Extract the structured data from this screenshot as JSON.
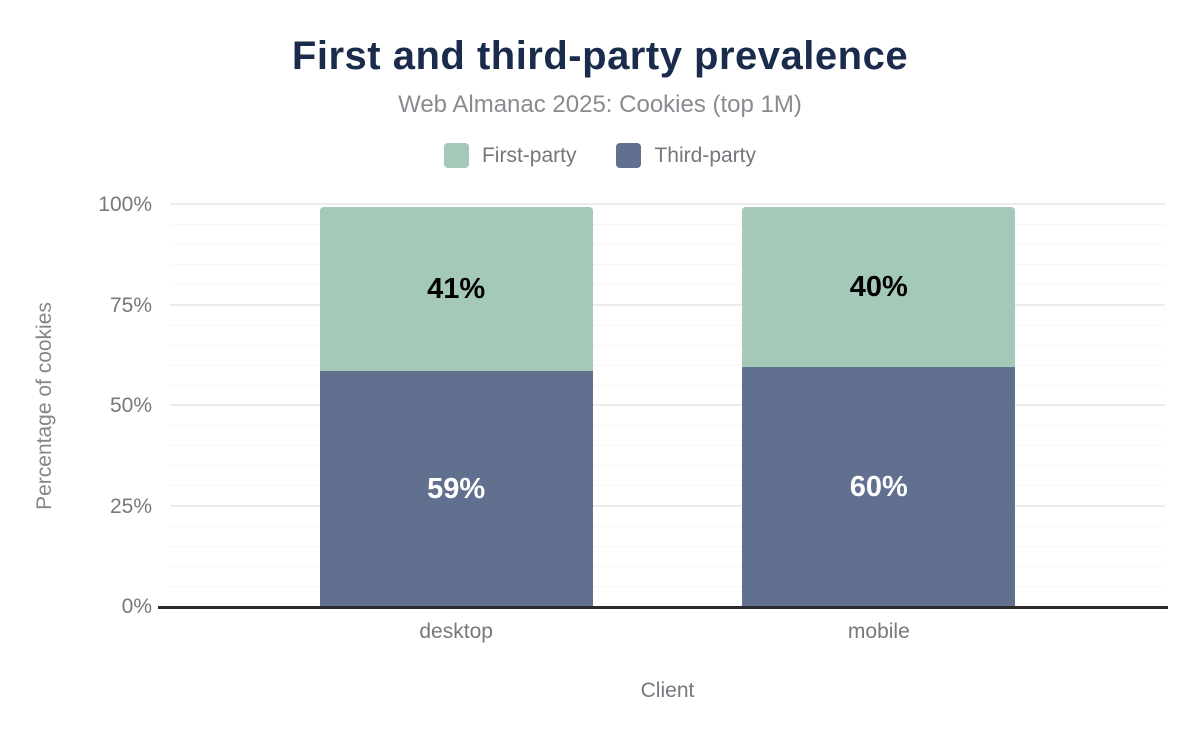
{
  "chart_data": {
    "type": "bar",
    "stacked": true,
    "title": "First and third-party prevalence",
    "subtitle": "Web Almanac 2025: Cookies (top 1M)",
    "xlabel": "Client",
    "ylabel": "Percentage of cookies",
    "categories": [
      "desktop",
      "mobile"
    ],
    "series": [
      {
        "name": "First-party",
        "color": "#a5c9b8",
        "label_color": "#000000",
        "values": [
          41,
          40
        ],
        "labels": [
          "41%",
          "40%"
        ]
      },
      {
        "name": "Third-party",
        "color": "#61708f",
        "label_color": "#ffffff",
        "values": [
          59,
          60
        ],
        "labels": [
          "59%",
          "60%"
        ]
      }
    ],
    "stack_order_bottom_to_top": [
      "Third-party",
      "First-party"
    ],
    "y_ticks": [
      {
        "label": "0%",
        "value": 0
      },
      {
        "label": "25%",
        "value": 25
      },
      {
        "label": "50%",
        "value": 50
      },
      {
        "label": "75%",
        "value": 75
      },
      {
        "label": "100%",
        "value": 100
      }
    ],
    "ylim": [
      0,
      100
    ],
    "grid": {
      "on": true,
      "minor_step": 5,
      "major_step": 25
    },
    "legend_position": "top"
  },
  "colors": {
    "title": "#1b2b4b",
    "subtitle": "#888c90",
    "axis_text": "#75797e",
    "axis_line": "#2b2b2b",
    "grid_minor": "#f7f7f7",
    "grid_major": "#ececec",
    "background": "#ffffff"
  }
}
